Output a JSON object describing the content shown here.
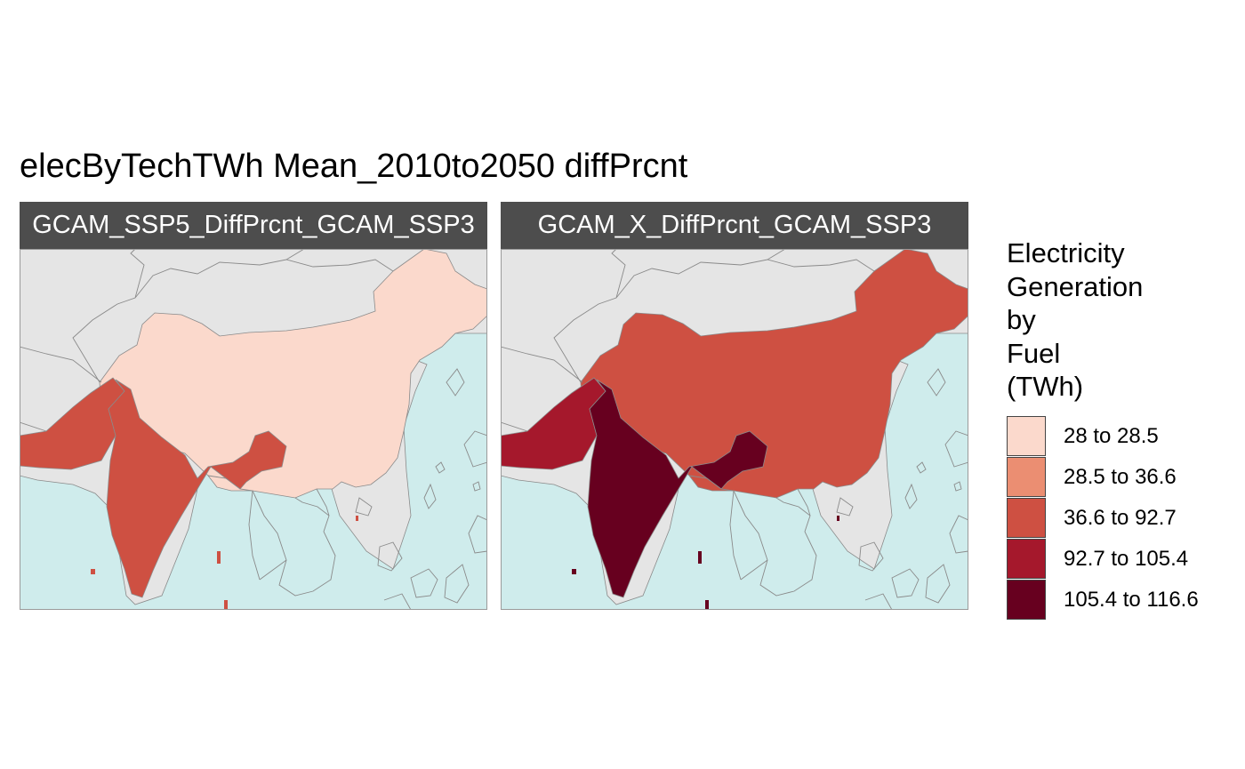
{
  "title": "elecByTechTWh Mean_2010to2050 diffPrcnt",
  "colors": {
    "ocean": "#cfecec",
    "land": "#e5e5e5",
    "border": "#8a8a8a",
    "strip": "#4d4d4d",
    "strip_text": "#ffffff"
  },
  "panels": [
    {
      "label": "GCAM_SSP5_DiffPrcnt_GCAM_SSP3",
      "regions": {
        "china": "28 to 28.5",
        "india": "36.6 to 92.7",
        "pakistan": "36.6 to 92.7"
      }
    },
    {
      "label": "GCAM_X_DiffPrcnt_GCAM_SSP3",
      "regions": {
        "china": "36.6 to 92.7",
        "india": "105.4 to 116.6",
        "pakistan": "92.7 to 105.4"
      }
    }
  ],
  "legend": {
    "title_lines": [
      "Electricity",
      "Generation",
      "by",
      "Fuel",
      "(TWh)"
    ],
    "items": [
      {
        "label": "28 to 28.5",
        "color": "#fbd9cc"
      },
      {
        "label": "28.5 to 36.6",
        "color": "#eb8e72"
      },
      {
        "label": "36.6 to 92.7",
        "color": "#ce5042"
      },
      {
        "label": "92.7 to 105.4",
        "color": "#a5182c"
      },
      {
        "label": "105.4 to 116.6",
        "color": "#67001f"
      }
    ]
  }
}
